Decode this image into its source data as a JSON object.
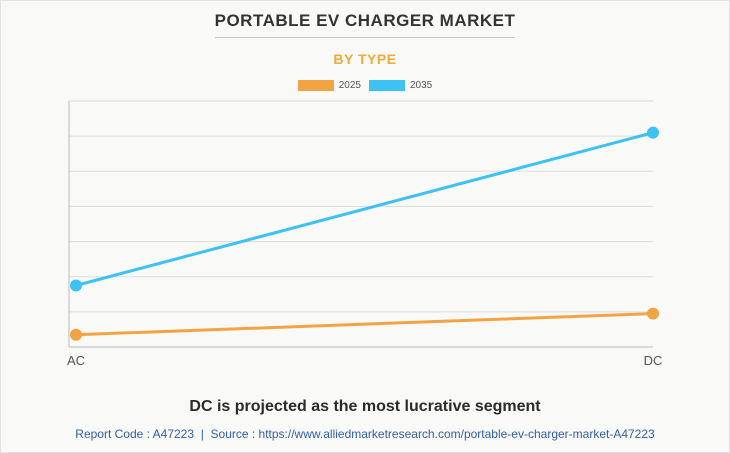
{
  "title": "PORTABLE EV CHARGER MARKET",
  "subtitle": "BY TYPE",
  "headline": "DC is projected as the most lucrative segment",
  "footer": {
    "report_code_label": "Report Code : A47223",
    "separator": "|",
    "source_label": "Source : https://www.alliedmarketresearch.com/portable-ev-charger-market-A47223"
  },
  "colors": {
    "series_2025": "#f2a444",
    "series_2035": "#3ec1f3",
    "title": "#333333",
    "subtitle": "#f0a93b",
    "footer": "#2f5fa8",
    "grid": "#dddddd"
  },
  "chart_data": {
    "type": "line",
    "categories": [
      "AC",
      "DC"
    ],
    "series": [
      {
        "name": "2025",
        "values": [
          3.5,
          9.5
        ]
      },
      {
        "name": "2035",
        "values": [
          17.5,
          61
        ]
      }
    ],
    "ylim": [
      0,
      70
    ],
    "grid": true,
    "legend": "top-center",
    "xlabel": "",
    "ylabel": ""
  }
}
